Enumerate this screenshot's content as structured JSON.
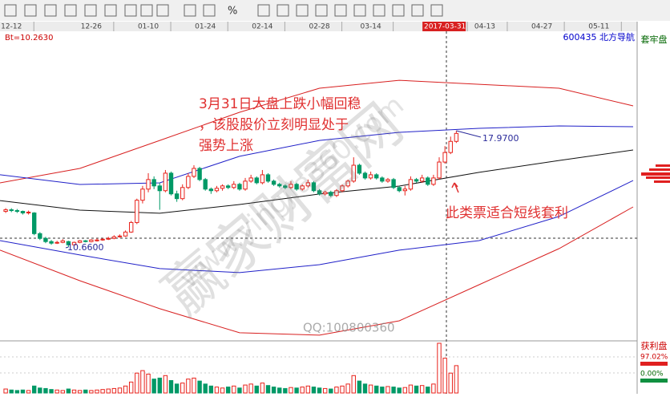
{
  "chart_data": {
    "type": "candlestick",
    "info_label": "Bt=10.2630",
    "stock_label": "600435  北方导航",
    "toolbar_label": "%",
    "sidebar_top": "套牢盘",
    "sidebar_bottom": "获利盘",
    "sidebar_values": [
      "97.02%",
      "0.00%"
    ],
    "annotations": [
      "3月31日大盘上跌小幅回稳",
      "，该股股价立刻明显处于",
      "强势上涨",
      "此类票适合短线套利"
    ],
    "watermarks": [
      "赢家财富网",
      "www.yingjia360.com",
      "QQ:100800360"
    ],
    "high_label": {
      "value": 17.97,
      "label": "17.9700"
    },
    "low_label": {
      "value": 10.66,
      "label": "10.6600"
    },
    "xlim": [
      -1,
      110
    ],
    "ylim": [
      4.76,
      24.17
    ],
    "vlim": [
      0,
      100
    ],
    "xticks": [
      {
        "value": 1,
        "label": "12-12"
      },
      {
        "value": 15,
        "label": "12-26"
      },
      {
        "value": 25,
        "label": "01-10"
      },
      {
        "value": 35,
        "label": "01-24"
      },
      {
        "value": 45,
        "label": "02-14"
      },
      {
        "value": 55,
        "label": "02-28"
      },
      {
        "value": 64,
        "label": "03-14"
      },
      {
        "value": 77,
        "label": "2017-03-31"
      },
      {
        "value": 84,
        "label": "04-13"
      },
      {
        "value": 94,
        "label": "04-27"
      },
      {
        "value": 104,
        "label": "05-11"
      }
    ],
    "up_color": "#e8231c",
    "down_color": "#009966",
    "open": [
      12.9,
      13.0,
      12.95,
      12.9,
      12.8,
      12.8,
      11.5,
      11.2,
      11.0,
      10.9,
      10.95,
      11.0,
      10.8,
      10.95,
      11.05,
      11.0,
      11.1,
      11.1,
      11.15,
      11.2,
      11.3,
      11.35,
      11.6,
      12.2,
      13.6,
      14.3,
      14.9,
      14.5,
      14.2,
      15.3,
      14.0,
      13.7,
      14.4,
      15.1,
      15.6,
      14.9,
      14.3,
      14.2,
      14.35,
      14.5,
      14.4,
      14.6,
      14.3,
      14.8,
      15.0,
      14.7,
      15.2,
      14.8,
      14.6,
      14.5,
      14.4,
      14.6,
      14.3,
      14.5,
      14.7,
      14.2,
      14.0,
      14.1,
      13.9,
      14.2,
      14.5,
      14.8,
      15.8,
      15.3,
      15.0,
      15.2,
      15.0,
      14.8,
      14.9,
      14.4,
      14.2,
      14.3,
      14.9,
      14.8,
      15.0,
      14.6,
      15.0,
      16.0,
      16.6,
      17.3
    ],
    "close": [
      13.0,
      12.95,
      12.9,
      12.8,
      12.85,
      11.5,
      11.2,
      11.0,
      10.9,
      10.95,
      11.05,
      10.8,
      10.95,
      11.05,
      11.0,
      11.1,
      11.1,
      11.15,
      11.2,
      11.3,
      11.35,
      11.6,
      12.2,
      13.6,
      14.3,
      14.9,
      14.5,
      14.2,
      15.3,
      14.0,
      13.7,
      14.4,
      15.1,
      15.6,
      14.9,
      14.3,
      14.2,
      14.35,
      14.5,
      14.4,
      14.6,
      14.3,
      14.8,
      15.0,
      14.7,
      15.2,
      14.8,
      14.6,
      14.5,
      14.4,
      14.6,
      14.3,
      14.5,
      14.7,
      14.2,
      14.0,
      14.1,
      13.9,
      14.2,
      14.5,
      14.8,
      15.8,
      15.3,
      15.0,
      15.2,
      15.0,
      14.8,
      14.9,
      14.4,
      14.2,
      14.3,
      14.9,
      14.8,
      15.0,
      14.6,
      15.0,
      16.0,
      16.6,
      17.3,
      17.8
    ],
    "high": [
      13.1,
      13.1,
      13.05,
      12.95,
      12.95,
      12.85,
      11.6,
      11.3,
      11.1,
      11.05,
      11.15,
      11.05,
      11.0,
      11.1,
      11.1,
      11.15,
      11.2,
      11.2,
      11.3,
      11.4,
      11.45,
      11.7,
      12.3,
      13.7,
      14.5,
      15.3,
      15.1,
      14.7,
      15.5,
      15.4,
      14.2,
      14.6,
      15.3,
      15.8,
      15.7,
      15.0,
      14.4,
      14.5,
      14.6,
      14.6,
      14.8,
      14.7,
      15.0,
      15.2,
      15.1,
      15.5,
      15.3,
      14.9,
      14.7,
      14.6,
      14.8,
      14.7,
      14.6,
      14.9,
      14.8,
      14.3,
      14.2,
      14.2,
      14.3,
      14.6,
      14.9,
      16.3,
      15.9,
      15.4,
      15.4,
      15.3,
      15.1,
      15.0,
      15.0,
      14.5,
      14.5,
      15.1,
      15.0,
      15.2,
      15.1,
      15.2,
      16.3,
      17.0,
      17.6,
      17.97
    ],
    "low": [
      12.8,
      12.85,
      12.8,
      12.7,
      12.7,
      11.4,
      11.1,
      10.9,
      10.8,
      10.85,
      10.9,
      10.66,
      10.75,
      10.9,
      10.95,
      10.95,
      11.0,
      11.05,
      11.1,
      11.15,
      11.25,
      11.3,
      11.55,
      12.1,
      13.4,
      14.1,
      14.3,
      13.0,
      14.1,
      13.9,
      13.5,
      13.6,
      14.3,
      15.0,
      14.8,
      14.2,
      14.0,
      14.1,
      14.2,
      14.3,
      14.3,
      14.2,
      14.2,
      14.7,
      14.6,
      14.6,
      14.7,
      14.5,
      14.4,
      14.3,
      14.3,
      14.2,
      14.2,
      14.4,
      14.1,
      13.9,
      13.9,
      13.8,
      13.8,
      14.1,
      14.4,
      14.7,
      15.2,
      14.9,
      14.9,
      14.9,
      14.7,
      14.7,
      14.3,
      14.1,
      13.9,
      14.2,
      14.7,
      14.7,
      14.5,
      14.5,
      14.9,
      15.9,
      16.5,
      17.2
    ],
    "volume": [
      8,
      6,
      5,
      6,
      5,
      14,
      10,
      9,
      7,
      6,
      5,
      8,
      6,
      5,
      6,
      5,
      6,
      7,
      8,
      9,
      10,
      14,
      22,
      40,
      45,
      38,
      28,
      30,
      35,
      25,
      18,
      20,
      28,
      30,
      24,
      18,
      14,
      12,
      10,
      12,
      14,
      10,
      16,
      18,
      14,
      20,
      15,
      12,
      10,
      9,
      11,
      10,
      12,
      14,
      12,
      10,
      9,
      8,
      12,
      14,
      18,
      35,
      24,
      18,
      16,
      14,
      12,
      13,
      12,
      10,
      11,
      16,
      14,
      15,
      12,
      18,
      100,
      70,
      40,
      55
    ],
    "series": [
      {
        "name": "布林上轨",
        "color": "#d82020",
        "x": [
          -1,
          13,
          27,
          41,
          55,
          69,
          83,
          97,
          110
        ],
        "values": [
          14.69,
          15.6,
          17.36,
          19.13,
          20.64,
          21.14,
          20.89,
          20.64,
          19.53
        ]
      },
      {
        "name": "上轨",
        "color": "#2020c8",
        "x": [
          -1,
          13,
          27,
          41,
          55,
          69,
          83,
          97,
          110
        ],
        "values": [
          15.2,
          14.59,
          14.69,
          16.36,
          17.36,
          17.87,
          18.12,
          18.27,
          18.22
        ]
      },
      {
        "name": "中轨",
        "color": "#111111",
        "x": [
          -1,
          13,
          27,
          41,
          55,
          69,
          83,
          97,
          110
        ],
        "values": [
          13.58,
          12.98,
          12.78,
          13.33,
          13.99,
          14.49,
          15.35,
          16.1,
          16.76
        ]
      },
      {
        "name": "下轨",
        "color": "#2020c8",
        "x": [
          -1,
          13,
          27,
          41,
          55,
          69,
          83,
          97,
          110
        ],
        "values": [
          11.06,
          10.16,
          9.3,
          9.05,
          9.55,
          10.46,
          11.06,
          12.58,
          14.84
        ]
      },
      {
        "name": "布林下轨",
        "color": "#d82020",
        "x": [
          -1,
          13,
          27,
          41,
          55,
          69,
          83,
          97,
          110
        ],
        "values": [
          10.46,
          8.54,
          6.78,
          5.27,
          5.12,
          6.02,
          8.29,
          10.56,
          13.18
        ]
      }
    ]
  }
}
